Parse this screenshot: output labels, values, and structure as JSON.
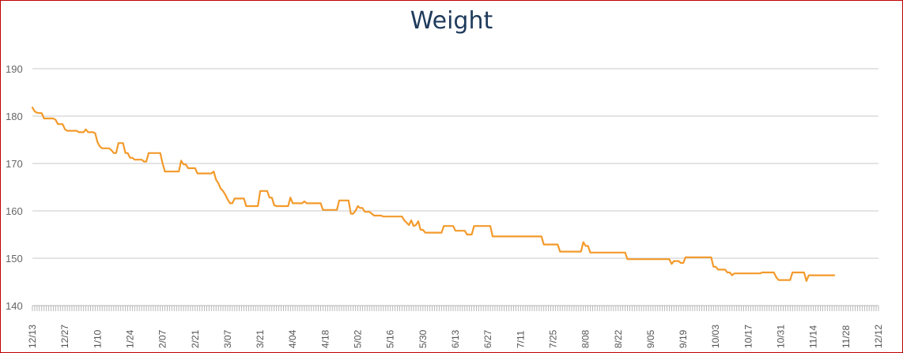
{
  "chart_data": {
    "type": "line",
    "title": "Weight",
    "xlabel": "",
    "ylabel": "",
    "ylim": [
      140,
      190
    ],
    "y_ticks": [
      140,
      150,
      160,
      170,
      180,
      190
    ],
    "x_tick_labels": [
      "12/13",
      "12/27",
      "1/10",
      "1/24",
      "2/07",
      "2/21",
      "3/07",
      "3/21",
      "4/04",
      "4/18",
      "5/02",
      "5/16",
      "5/30",
      "6/13",
      "6/27",
      "7/11",
      "7/25",
      "8/08",
      "8/22",
      "9/05",
      "9/19",
      "10/03",
      "10/17",
      "10/31",
      "11/14",
      "11/28",
      "12/12"
    ],
    "grid": true,
    "legend": "none",
    "series": [
      {
        "color": "#f39a2b",
        "points": [
          [
            0,
            181.8
          ],
          [
            1,
            181
          ],
          [
            2,
            180.7
          ],
          [
            4,
            180.6
          ],
          [
            5,
            179.5
          ],
          [
            9,
            179.5
          ],
          [
            10,
            179.2
          ],
          [
            11,
            178.3
          ],
          [
            13,
            178.3
          ],
          [
            14,
            177.2
          ],
          [
            15,
            176.9
          ],
          [
            17,
            176.9
          ],
          [
            19,
            176.9
          ],
          [
            20,
            176.6
          ],
          [
            22,
            176.6
          ],
          [
            23,
            177.2
          ],
          [
            24,
            176.6
          ],
          [
            26,
            176.6
          ],
          [
            27,
            176.4
          ],
          [
            28,
            174.5
          ],
          [
            29,
            173.6
          ],
          [
            30,
            173.2
          ],
          [
            33,
            173.2
          ],
          [
            34,
            172.8
          ],
          [
            35,
            172.2
          ],
          [
            36,
            172.2
          ],
          [
            37,
            174.3
          ],
          [
            39,
            174.3
          ],
          [
            40,
            172.2
          ],
          [
            41,
            172.2
          ],
          [
            42,
            171.2
          ],
          [
            43,
            171.2
          ],
          [
            44,
            170.8
          ],
          [
            47,
            170.8
          ],
          [
            48,
            170.4
          ],
          [
            49,
            170.4
          ],
          [
            50,
            172.2
          ],
          [
            55,
            172.2
          ],
          [
            56,
            170.0
          ],
          [
            57,
            168.3
          ],
          [
            63,
            168.3
          ],
          [
            64,
            170.6
          ],
          [
            65,
            169.8
          ],
          [
            66,
            169.8
          ],
          [
            67,
            169.0
          ],
          [
            70,
            169.0
          ],
          [
            71,
            167.9
          ],
          [
            77,
            167.9
          ],
          [
            78,
            168.3
          ],
          [
            79,
            166.6
          ],
          [
            80,
            165.8
          ],
          [
            81,
            164.7
          ],
          [
            82,
            164.2
          ],
          [
            83,
            163.4
          ],
          [
            84,
            162.4
          ],
          [
            85,
            161.6
          ],
          [
            86,
            161.6
          ],
          [
            87,
            162.6
          ],
          [
            91,
            162.6
          ],
          [
            92,
            161.0
          ],
          [
            97,
            161.0
          ],
          [
            98,
            164.2
          ],
          [
            101,
            164.2
          ],
          [
            102,
            162.8
          ],
          [
            103,
            162.8
          ],
          [
            104,
            161.2
          ],
          [
            105,
            161.0
          ],
          [
            110,
            161.0
          ],
          [
            111,
            162.8
          ],
          [
            112,
            161.6
          ],
          [
            116,
            161.6
          ],
          [
            117,
            162.0
          ],
          [
            118,
            161.6
          ],
          [
            124,
            161.6
          ],
          [
            125,
            160.2
          ],
          [
            131,
            160.2
          ],
          [
            132,
            162.2
          ],
          [
            136,
            162.2
          ],
          [
            137,
            159.4
          ],
          [
            138,
            159.4
          ],
          [
            139,
            160.0
          ],
          [
            140,
            161.0
          ],
          [
            141,
            160.6
          ],
          [
            142,
            160.6
          ],
          [
            143,
            159.8
          ],
          [
            145,
            159.8
          ],
          [
            146,
            159.4
          ],
          [
            147,
            159.0
          ],
          [
            150,
            159.0
          ],
          [
            151,
            158.8
          ],
          [
            159,
            158.8
          ],
          [
            160,
            158.0
          ],
          [
            161,
            157.5
          ],
          [
            162,
            157.0
          ],
          [
            163,
            158.0
          ],
          [
            164,
            156.8
          ],
          [
            165,
            157.0
          ],
          [
            166,
            157.8
          ],
          [
            167,
            156.0
          ],
          [
            168,
            156.0
          ],
          [
            169,
            155.4
          ],
          [
            176,
            155.4
          ],
          [
            177,
            156.8
          ],
          [
            181,
            156.8
          ],
          [
            182,
            155.8
          ],
          [
            186,
            155.8
          ],
          [
            187,
            155.0
          ],
          [
            189,
            155.0
          ],
          [
            190,
            156.8
          ],
          [
            197,
            156.8
          ],
          [
            198,
            154.6
          ],
          [
            219,
            154.6
          ],
          [
            220,
            152.9
          ],
          [
            226,
            152.9
          ],
          [
            227,
            151.4
          ],
          [
            236,
            151.4
          ],
          [
            237,
            153.4
          ],
          [
            238,
            152.6
          ],
          [
            239,
            152.6
          ],
          [
            240,
            151.2
          ],
          [
            255,
            151.2
          ],
          [
            256,
            149.8
          ],
          [
            274,
            149.8
          ],
          [
            275,
            148.8
          ],
          [
            276,
            149.4
          ],
          [
            278,
            149.4
          ],
          [
            279,
            149.0
          ],
          [
            280,
            149.0
          ],
          [
            281,
            150.2
          ],
          [
            292,
            150.2
          ],
          [
            293,
            148.2
          ],
          [
            294,
            148.2
          ],
          [
            295,
            147.6
          ],
          [
            298,
            147.6
          ],
          [
            299,
            147.0
          ],
          [
            300,
            147.0
          ],
          [
            301,
            146.4
          ],
          [
            302,
            146.8
          ],
          [
            313,
            146.8
          ],
          [
            314,
            147.0
          ],
          [
            319,
            147.0
          ],
          [
            320,
            146.0
          ],
          [
            321,
            145.4
          ],
          [
            326,
            145.4
          ],
          [
            327,
            147.0
          ],
          [
            332,
            147.0
          ],
          [
            333,
            145.2
          ],
          [
            334,
            146.4
          ],
          [
            335,
            146.4
          ],
          [
            345,
            146.4
          ]
        ]
      }
    ]
  }
}
